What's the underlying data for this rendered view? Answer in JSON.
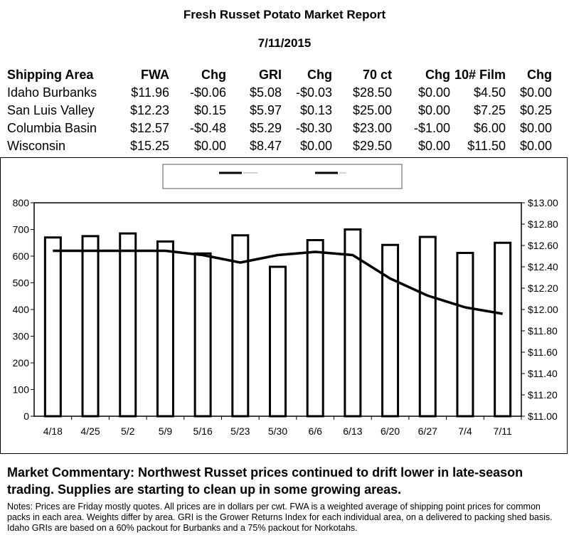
{
  "report": {
    "title": "Fresh Russet Potato Market Report",
    "date": "7/11/2015"
  },
  "price_table": {
    "headers": [
      "Shipping Area",
      "FWA",
      "Chg",
      "GRI",
      "Chg",
      "70 ct",
      "Chg",
      "10# Film",
      "Chg"
    ],
    "rows": [
      [
        "Idaho Burbanks",
        "$11.96",
        "-$0.06",
        "$5.08",
        "-$0.03",
        "$28.50",
        "$0.00",
        "$4.50",
        "$0.00"
      ],
      [
        "San Luis Valley",
        "$12.23",
        "$0.15",
        "$5.97",
        "$0.13",
        "$25.00",
        "$0.00",
        "$7.25",
        "$0.25"
      ],
      [
        "Columbia Basin",
        "$12.57",
        "-$0.48",
        "$5.29",
        "-$0.30",
        "$23.00",
        "-$1.00",
        "$6.00",
        "$0.00"
      ],
      [
        "Wisconsin",
        "$15.25",
        "$0.00",
        "$8.47",
        "$0.00",
        "$29.50",
        "$0.00",
        "$11.50",
        "$0.00"
      ]
    ]
  },
  "chart_data": {
    "type": "bar",
    "categories": [
      "4/18",
      "4/25",
      "5/2",
      "5/9",
      "5/16",
      "5/23",
      "5/30",
      "6/6",
      "6/13",
      "6/20",
      "6/27",
      "7/4",
      "7/11"
    ],
    "series": [
      {
        "type": "bar",
        "axis": "left",
        "values": [
          670,
          675,
          685,
          655,
          610,
          678,
          560,
          660,
          700,
          642,
          672,
          612,
          650
        ]
      },
      {
        "type": "line",
        "axis": "right",
        "values": [
          12.55,
          12.55,
          12.55,
          12.55,
          12.51,
          12.44,
          12.51,
          12.54,
          12.51,
          12.29,
          12.13,
          12.02,
          11.96
        ]
      }
    ],
    "left_axis": {
      "min": 0,
      "max": 800,
      "ticks": [
        "0",
        "100",
        "200",
        "300",
        "400",
        "500",
        "600",
        "700",
        "800"
      ]
    },
    "right_axis": {
      "min": 11.0,
      "max": 13.0,
      "ticks": [
        "$11.00",
        "$11.20",
        "$11.40",
        "$11.60",
        "$11.80",
        "$12.00",
        "$12.20",
        "$12.40",
        "$12.60",
        "$12.80",
        "$13.00"
      ]
    },
    "legend": "top-center",
    "grid": false
  },
  "commentary": "Market Commentary: Northwest Russet prices continued to drift lower in late-season trading. Supplies are starting to clean up in some growing areas.",
  "notes": "Notes: Prices are Friday mostly quotes. All prices are in dollars per cwt. FWA is a weighted average of shipping point prices for common packs in each area. Weights differ by area. GRI is the Grower Returns Index for each individual area, on a delivered to packing shed basis. Idaho GRIs are based on a 60% packout for Burbanks and a 75% packout for Norkotahs."
}
